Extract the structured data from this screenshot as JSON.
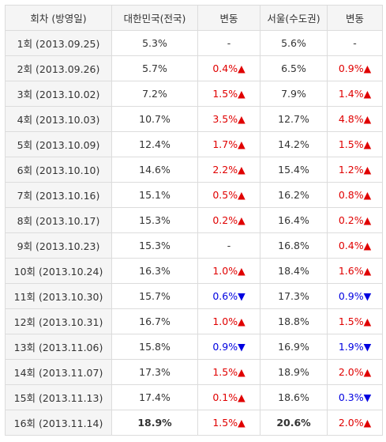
{
  "headers": [
    "회차 (방영일)",
    "대한민국(전국)",
    "변동",
    "서울(수도권)",
    "변동"
  ],
  "rows": [
    {
      "ep": "1회 (2013.09.25)",
      "national": "5.3%",
      "nat_change": "-",
      "nat_dir": "same",
      "seoul": "5.6%",
      "seoul_change": "-",
      "seoul_dir": "same"
    },
    {
      "ep": "2회 (2013.09.26)",
      "national": "5.7%",
      "nat_change": "0.4%▲",
      "nat_dir": "up",
      "seoul": "6.5%",
      "seoul_change": "0.9%▲",
      "seoul_dir": "up"
    },
    {
      "ep": "3회 (2013.10.02)",
      "national": "7.2%",
      "nat_change": "1.5%▲",
      "nat_dir": "up",
      "seoul": "7.9%",
      "seoul_change": "1.4%▲",
      "seoul_dir": "up"
    },
    {
      "ep": "4회 (2013.10.03)",
      "national": "10.7%",
      "nat_change": "3.5%▲",
      "nat_dir": "up",
      "seoul": "12.7%",
      "seoul_change": "4.8%▲",
      "seoul_dir": "up"
    },
    {
      "ep": "5회 (2013.10.09)",
      "national": "12.4%",
      "nat_change": "1.7%▲",
      "nat_dir": "up",
      "seoul": "14.2%",
      "seoul_change": "1.5%▲",
      "seoul_dir": "up"
    },
    {
      "ep": "6회 (2013.10.10)",
      "national": "14.6%",
      "nat_change": "2.2%▲",
      "nat_dir": "up",
      "seoul": "15.4%",
      "seoul_change": "1.2%▲",
      "seoul_dir": "up"
    },
    {
      "ep": "7회 (2013.10.16)",
      "national": "15.1%",
      "nat_change": "0.5%▲",
      "nat_dir": "up",
      "seoul": "16.2%",
      "seoul_change": "0.8%▲",
      "seoul_dir": "up"
    },
    {
      "ep": "8회 (2013.10.17)",
      "national": "15.3%",
      "nat_change": "0.2%▲",
      "nat_dir": "up",
      "seoul": "16.4%",
      "seoul_change": "0.2%▲",
      "seoul_dir": "up"
    },
    {
      "ep": "9회 (2013.10.23)",
      "national": "15.3%",
      "nat_change": "-",
      "nat_dir": "same",
      "seoul": "16.8%",
      "seoul_change": "0.4%▲",
      "seoul_dir": "up"
    },
    {
      "ep": "10회 (2013.10.24)",
      "national": "16.3%",
      "nat_change": "1.0%▲",
      "nat_dir": "up",
      "seoul": "18.4%",
      "seoul_change": "1.6%▲",
      "seoul_dir": "up"
    },
    {
      "ep": "11회 (2013.10.30)",
      "national": "15.7%",
      "nat_change": "0.6%▼",
      "nat_dir": "down",
      "seoul": "17.3%",
      "seoul_change": "0.9%▼",
      "seoul_dir": "down"
    },
    {
      "ep": "12회 (2013.10.31)",
      "national": "16.7%",
      "nat_change": "1.0%▲",
      "nat_dir": "up",
      "seoul": "18.8%",
      "seoul_change": "1.5%▲",
      "seoul_dir": "up"
    },
    {
      "ep": "13회 (2013.11.06)",
      "national": "15.8%",
      "nat_change": "0.9%▼",
      "nat_dir": "down",
      "seoul": "16.9%",
      "seoul_change": "1.9%▼",
      "seoul_dir": "down"
    },
    {
      "ep": "14회 (2013.11.07)",
      "national": "17.3%",
      "nat_change": "1.5%▲",
      "nat_dir": "up",
      "seoul": "18.9%",
      "seoul_change": "2.0%▲",
      "seoul_dir": "up"
    },
    {
      "ep": "15회 (2013.11.13)",
      "national": "17.4%",
      "nat_change": "0.1%▲",
      "nat_dir": "up",
      "seoul": "18.6%",
      "seoul_change": "0.3%▼",
      "seoul_dir": "down"
    },
    {
      "ep": "16회 (2013.11.14)",
      "national": "18.9%",
      "nat_change": "1.5%▲",
      "nat_dir": "up",
      "seoul": "20.6%",
      "seoul_change": "2.0%▲",
      "seoul_dir": "up",
      "highlight": true
    }
  ],
  "colors": {
    "up": "#e00000",
    "down": "#0000e0",
    "header_bg": "#f5f5f5",
    "border": "#dcdcdc"
  }
}
